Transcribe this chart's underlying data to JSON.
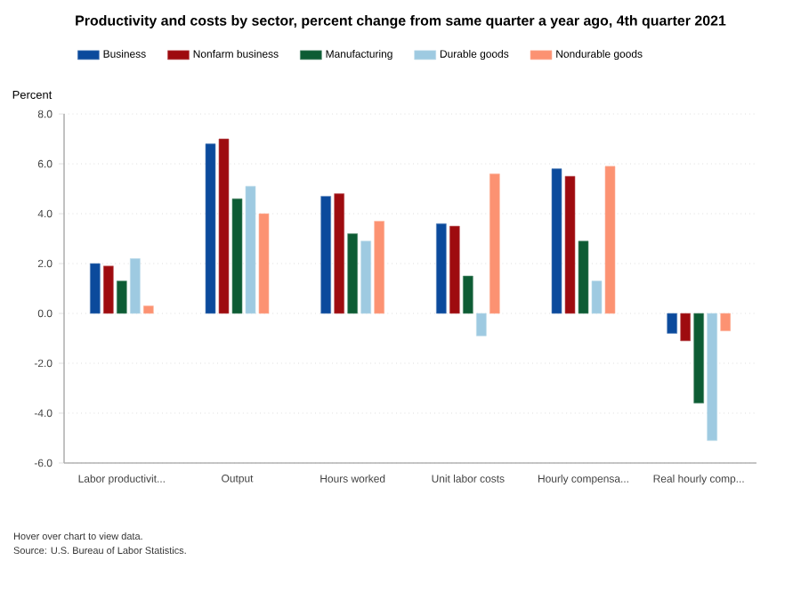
{
  "chart_data": {
    "type": "bar",
    "title": "Productivity and costs by sector, percent change from same quarter a year ago, 4th quarter 2021",
    "ylabel": "Percent",
    "categories": [
      "Labor productivit...",
      "Output",
      "Hours worked",
      "Unit labor costs",
      "Hourly compensa...",
      "Real hourly comp..."
    ],
    "series": [
      {
        "name": "Business",
        "color": "#0b4a9c",
        "values": [
          2.0,
          6.8,
          4.7,
          3.6,
          5.8,
          -0.8
        ]
      },
      {
        "name": "Nonfarm business",
        "color": "#9e0b0f",
        "values": [
          1.9,
          7.0,
          4.8,
          3.5,
          5.5,
          -1.1
        ]
      },
      {
        "name": "Manufacturing",
        "color": "#0d5c34",
        "values": [
          1.3,
          4.6,
          3.2,
          1.5,
          2.9,
          -3.6
        ]
      },
      {
        "name": "Durable goods",
        "color": "#9ecae1",
        "values": [
          2.2,
          5.1,
          2.9,
          -0.9,
          1.3,
          -5.1
        ]
      },
      {
        "name": "Nondurable goods",
        "color": "#fc9272",
        "values": [
          0.3,
          4.0,
          3.7,
          5.6,
          5.9,
          -0.7
        ]
      }
    ],
    "ylim": [
      -6,
      8
    ],
    "yticks": [
      {
        "value": -6,
        "label": "-6.0"
      },
      {
        "value": -4,
        "label": "-4.0"
      },
      {
        "value": -2,
        "label": "-2.0"
      },
      {
        "value": 0,
        "label": "0.0"
      },
      {
        "value": 2,
        "label": "2.0"
      },
      {
        "value": 4,
        "label": "4.0"
      },
      {
        "value": 6,
        "label": "6.0"
      },
      {
        "value": 8,
        "label": "8.0"
      }
    ],
    "grid": "y",
    "legend": "top",
    "annotations": [
      "Hover over chart to view data.",
      "Source: U.S. Bureau of Labor Statistics."
    ]
  }
}
